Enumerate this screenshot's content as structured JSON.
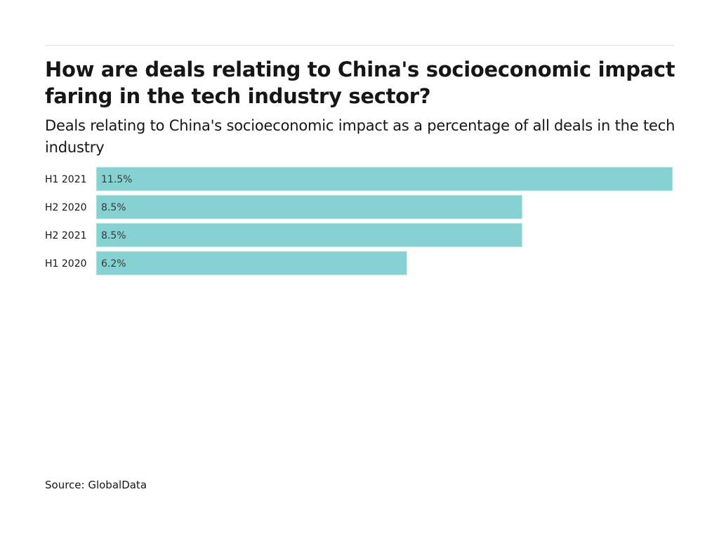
{
  "header": {
    "title": "How are deals relating to China's socioeconomic impact faring in the tech industry sector?",
    "subtitle": "Deals relating to China's socioeconomic impact as a percentage of all deals in the tech industry"
  },
  "footer": {
    "source": "Source: GlobalData"
  },
  "colors": {
    "bar": "#86d1d1",
    "bar_stroke": "#d6f0f0"
  },
  "chart_data": {
    "type": "bar",
    "orientation": "horizontal",
    "title": "How are deals relating to China's socioeconomic impact faring in the tech industry sector?",
    "subtitle": "Deals relating to China's socioeconomic impact as a percentage of all deals in the tech industry",
    "xlabel": "",
    "ylabel": "",
    "categories": [
      "H1 2021",
      "H2 2020",
      "H2 2021",
      "H1 2020"
    ],
    "values": [
      11.5,
      8.5,
      8.5,
      6.2
    ],
    "value_labels": [
      "11.5%",
      "8.5%",
      "8.5%",
      "6.2%"
    ],
    "unit": "%",
    "xlim": [
      0,
      11.5
    ],
    "grid": false,
    "legend": "none",
    "source": "Source: GlobalData"
  }
}
